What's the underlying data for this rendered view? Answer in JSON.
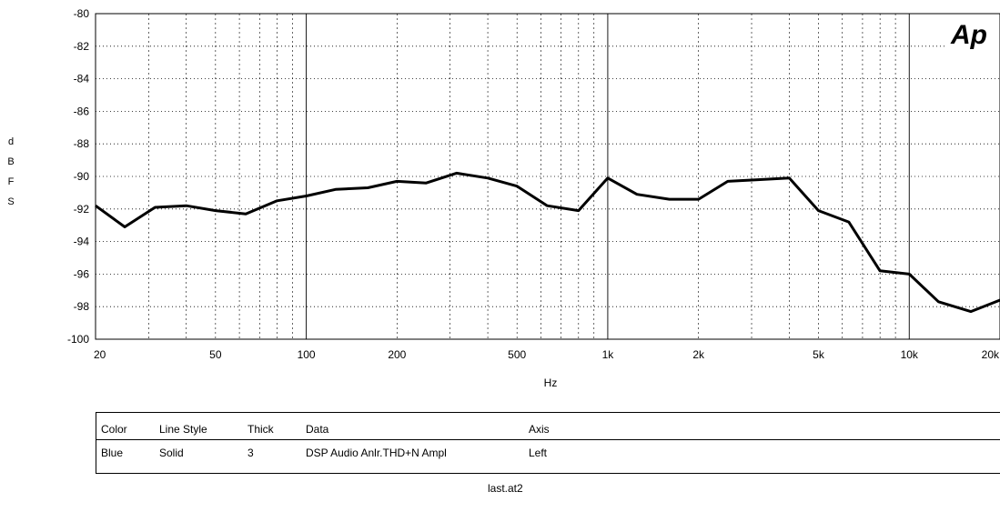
{
  "logo_text": "Ap",
  "chart_data": {
    "type": "line",
    "xscale": "log",
    "xlim": [
      20,
      20000
    ],
    "ylim": [
      -100,
      -80
    ],
    "xlabel": "Hz",
    "ylabel": "dBFS",
    "grid": true,
    "ytick_labels": [
      "-80",
      "-82",
      "-84",
      "-86",
      "-88",
      "-90",
      "-92",
      "-94",
      "-96",
      "-98",
      "-100"
    ],
    "xtick_labels": [
      "20",
      "50",
      "100",
      "200",
      "500",
      "1k",
      "2k",
      "5k",
      "10k",
      "20k"
    ],
    "series": [
      {
        "color": "#000000",
        "x": [
          20,
          25,
          31.5,
          40,
          50,
          63,
          80,
          100,
          125,
          160,
          200,
          250,
          315,
          400,
          500,
          630,
          800,
          1000,
          1250,
          1600,
          2000,
          2500,
          3150,
          4000,
          5000,
          6300,
          8000,
          10000,
          12500,
          16000,
          20000
        ],
        "y": [
          -91.8,
          -93.1,
          -91.9,
          -91.8,
          -92.1,
          -92.3,
          -91.5,
          -91.2,
          -90.8,
          -90.7,
          -90.3,
          -90.4,
          -89.8,
          -90.1,
          -90.6,
          -91.8,
          -92.1,
          -90.1,
          -91.1,
          -91.4,
          -91.4,
          -90.3,
          -90.2,
          -90.1,
          -92.1,
          -92.8,
          -95.8,
          -96.0,
          -97.7,
          -98.3,
          -97.6
        ]
      }
    ]
  },
  "legend": {
    "headers": {
      "color": "Color",
      "line_style": "Line Style",
      "thick": "Thick",
      "data": "Data",
      "axis": "Axis"
    },
    "row": {
      "color": "Blue",
      "line_style": "Solid",
      "thick": "3",
      "data": "DSP Audio Anlr.THD+N Ampl",
      "axis": "Left"
    }
  },
  "filename": "last.at2"
}
